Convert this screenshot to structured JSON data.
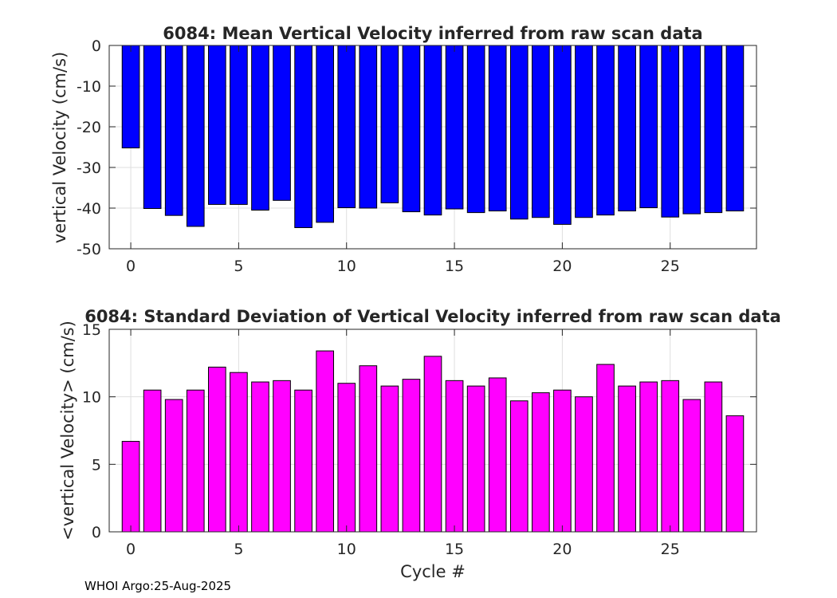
{
  "chart_data": [
    {
      "type": "bar",
      "title": "6084: Mean Vertical Velocity inferred from raw scan data",
      "xlabel": "",
      "ylabel": "vertical Velocity (cm/s)",
      "ylim": [
        -50,
        0
      ],
      "xlim": [
        -1,
        29
      ],
      "grid": true,
      "color": "#0000ff",
      "x": [
        0,
        1,
        2,
        3,
        4,
        5,
        6,
        7,
        8,
        9,
        10,
        11,
        12,
        13,
        14,
        15,
        16,
        17,
        18,
        19,
        20,
        21,
        22,
        23,
        24,
        25,
        26,
        27,
        28
      ],
      "values": [
        -25.2,
        -40.1,
        -41.8,
        -44.5,
        -39.1,
        -39.1,
        -40.5,
        -38.1,
        -44.8,
        -43.5,
        -39.9,
        -40.0,
        -38.7,
        -40.9,
        -41.7,
        -40.2,
        -41.1,
        -40.7,
        -42.7,
        -42.3,
        -44.0,
        -42.3,
        -41.7,
        -40.7,
        -39.9,
        -42.2,
        -41.4,
        -41.1,
        -40.7
      ],
      "xticks": [
        0,
        5,
        10,
        15,
        20,
        25
      ],
      "yticks": [
        0,
        -10,
        -20,
        -30,
        -40,
        -50
      ]
    },
    {
      "type": "bar",
      "title": "6084: Standard Deviation of Vertical Velocity inferred from raw scan data",
      "xlabel": "Cycle #",
      "ylabel": "<vertical Velocity> (cm/s)",
      "ylim": [
        0,
        15
      ],
      "xlim": [
        -1,
        29
      ],
      "grid": true,
      "color": "#ff00ff",
      "x": [
        0,
        1,
        2,
        3,
        4,
        5,
        6,
        7,
        8,
        9,
        10,
        11,
        12,
        13,
        14,
        15,
        16,
        17,
        18,
        19,
        20,
        21,
        22,
        23,
        24,
        25,
        26,
        27,
        28
      ],
      "values": [
        6.7,
        10.5,
        9.8,
        10.5,
        12.2,
        11.8,
        11.1,
        11.2,
        10.5,
        13.4,
        11.0,
        12.3,
        10.8,
        11.3,
        13.0,
        11.2,
        10.8,
        11.4,
        9.7,
        10.3,
        10.5,
        10.0,
        12.4,
        10.8,
        11.1,
        11.2,
        9.8,
        11.1,
        8.6
      ],
      "xticks": [
        0,
        5,
        10,
        15,
        20,
        25
      ],
      "yticks": [
        0,
        5,
        10,
        15
      ]
    }
  ],
  "footer": "WHOI Argo:25-Aug-2025"
}
